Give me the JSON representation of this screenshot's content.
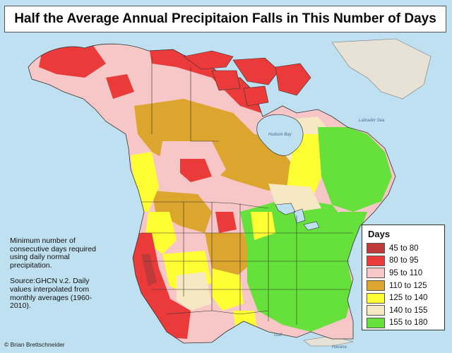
{
  "title": "Half the Average Annual Precipitaion Falls in This Number of Days",
  "notes": {
    "definition": "Minimum number of consecutive days required using daily normal precipitation.",
    "source": "Source:GHCN v.2. Daily values interpolated from monthly averages (1960-2010)."
  },
  "legend": {
    "title": "Days",
    "items": [
      {
        "label": "45 to 80",
        "color": "#c03a3a"
      },
      {
        "label": "80 to 95",
        "color": "#ea3a3a"
      },
      {
        "label": "95 to 110",
        "color": "#f7c6c6"
      },
      {
        "label": "110 to 125",
        "color": "#dba52e"
      },
      {
        "label": "125 to 140",
        "color": "#ffff33"
      },
      {
        "label": "140 to 155",
        "color": "#f5e8c3"
      },
      {
        "label": "155 to 180",
        "color": "#66e03a"
      }
    ]
  },
  "credit": "© Brian Brettschneider",
  "place_labels": {
    "hudson_bay": "Hudson Bay",
    "labrador_sea": "Labrador Sea",
    "gulf": "Gulf",
    "havana": "Havana"
  },
  "colors": {
    "water": "#bfe0f0",
    "land_outside": "#e8e2d6",
    "border": "#333333"
  }
}
